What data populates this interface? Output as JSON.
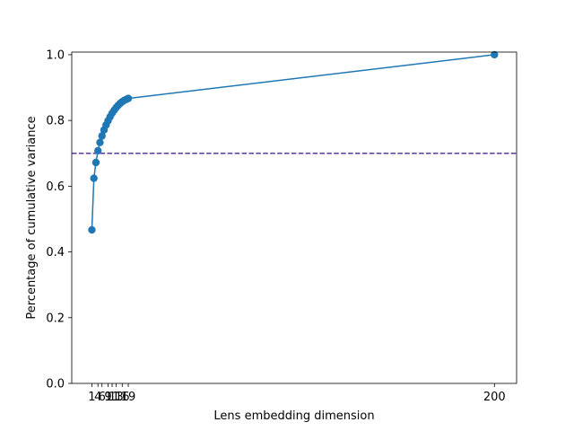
{
  "chart_data": {
    "type": "line",
    "title": "",
    "xlabel": "Lens embedding dimension",
    "ylabel": "Percentage of cumulative variance",
    "xlim": [
      -8.95,
      210.95
    ],
    "ylim": [
      0.0,
      1.008
    ],
    "x_ticks": [
      1,
      4,
      6,
      9,
      11,
      13,
      16,
      19,
      200
    ],
    "x_tick_labels": [
      "1",
      "4",
      "6",
      "9",
      "11",
      "13",
      "16",
      "19",
      "200"
    ],
    "y_ticks": [
      0.0,
      0.2,
      0.4,
      0.6,
      0.8,
      1.0
    ],
    "y_tick_labels": [
      "0.0",
      "0.2",
      "0.4",
      "0.6",
      "0.8",
      "1.0"
    ],
    "grid": false,
    "series": [
      {
        "color": "#1f77b4",
        "marker": "circle",
        "x": [
          1,
          2,
          3,
          4,
          5,
          6,
          7,
          8,
          9,
          10,
          11,
          12,
          13,
          14,
          15,
          16,
          17,
          18,
          19,
          200
        ],
        "y": [
          0.467,
          0.624,
          0.672,
          0.708,
          0.733,
          0.753,
          0.771,
          0.786,
          0.799,
          0.811,
          0.822,
          0.831,
          0.839,
          0.846,
          0.852,
          0.857,
          0.861,
          0.864,
          0.867,
          1.0
        ]
      }
    ],
    "reference_line": {
      "orientation": "horizontal",
      "y": 0.7,
      "color": "#5b3a9b",
      "style": "dashed"
    }
  }
}
